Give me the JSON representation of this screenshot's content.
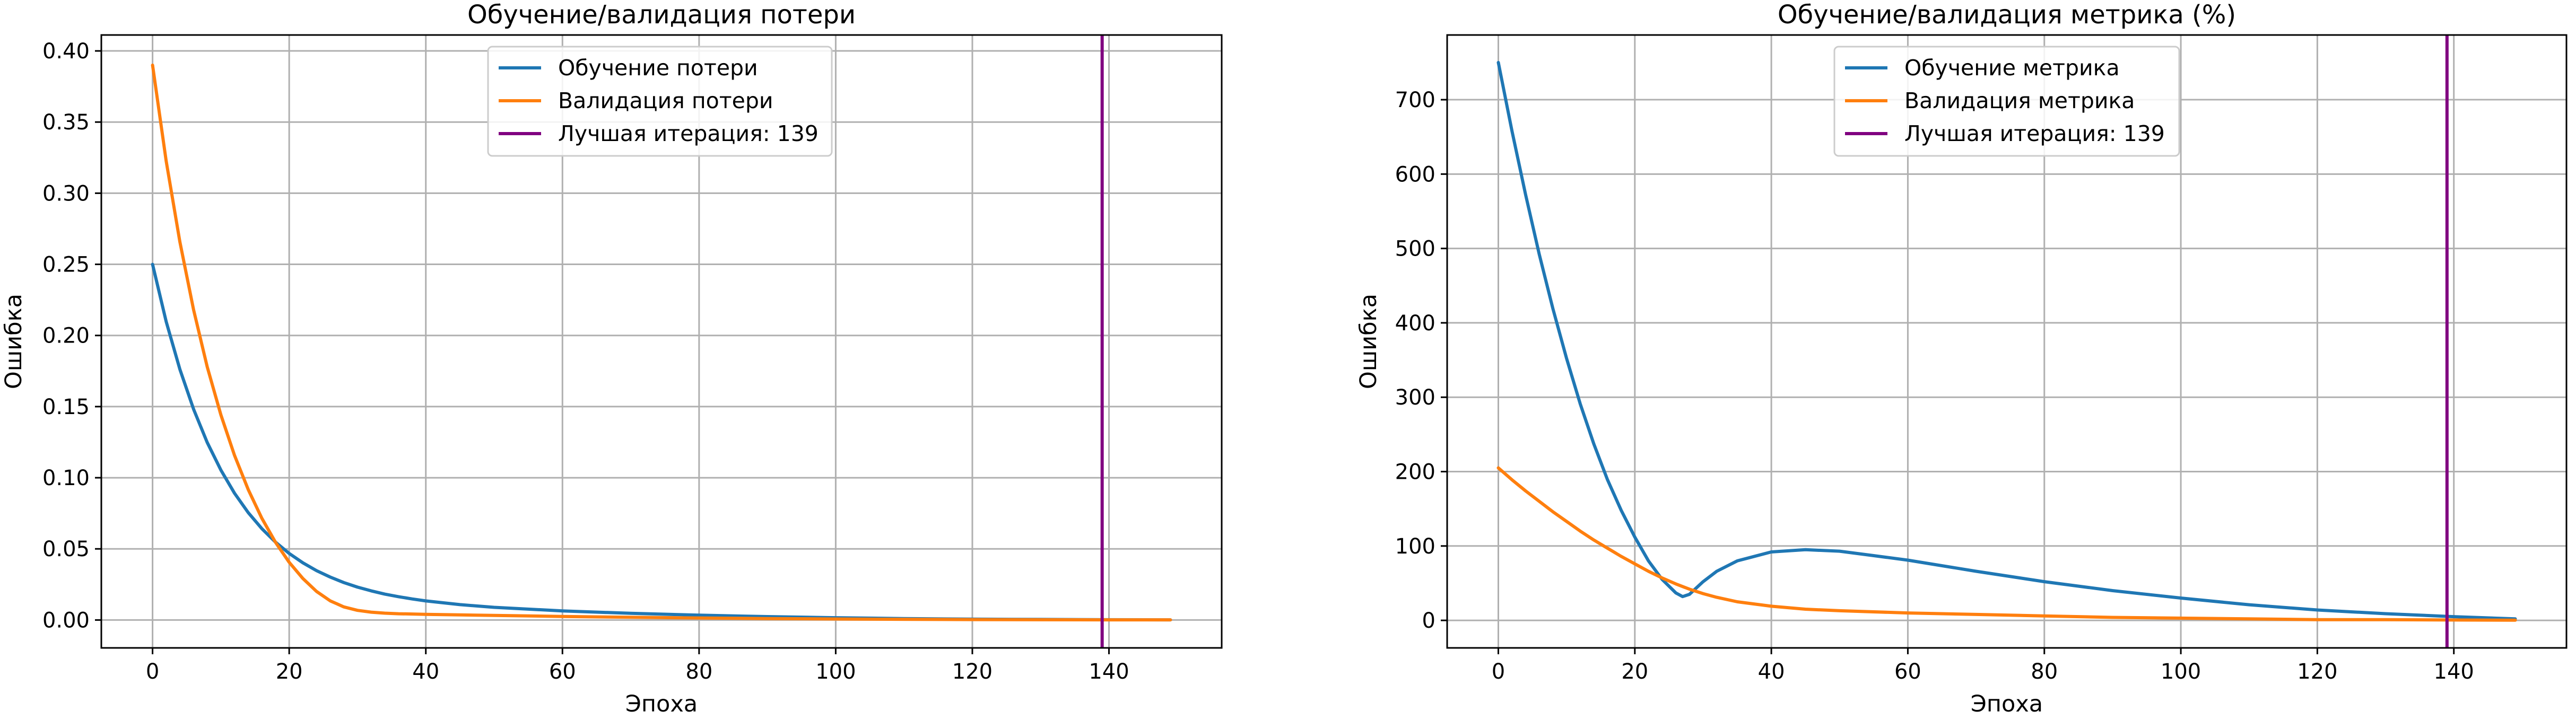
{
  "chart_data": [
    {
      "type": "line",
      "title": "Обучение/валидация потери",
      "xlabel": "Эпоха",
      "ylabel": "Ошибка",
      "xlim": [
        -7.5,
        156.5
      ],
      "ylim": [
        -0.0196,
        0.4112
      ],
      "xticks": [
        0,
        20,
        40,
        60,
        80,
        100,
        120,
        140
      ],
      "xtick_labels": [
        "0",
        "20",
        "40",
        "60",
        "80",
        "100",
        "120",
        "140"
      ],
      "yticks": [
        0,
        0.05,
        0.1,
        0.15,
        0.2,
        0.25,
        0.3,
        0.35,
        0.4
      ],
      "ytick_labels": [
        "0.00",
        "0.05",
        "0.10",
        "0.15",
        "0.20",
        "0.25",
        "0.30",
        "0.35",
        "0.40"
      ],
      "grid": true,
      "legend_position": "top-center",
      "series": [
        {
          "name": "Обучение потери",
          "color": "#1f77b4",
          "x": [
            0,
            2,
            4,
            6,
            8,
            10,
            12,
            14,
            16,
            18,
            20,
            22,
            24,
            26,
            28,
            30,
            32,
            34,
            36,
            38,
            40,
            45,
            50,
            60,
            70,
            80,
            90,
            100,
            110,
            120,
            130,
            140,
            149
          ],
          "y": [
            0.25,
            0.2097,
            0.1762,
            0.1482,
            0.1248,
            0.1054,
            0.0891,
            0.0755,
            0.0642,
            0.0547,
            0.0468,
            0.0402,
            0.0347,
            0.0302,
            0.0263,
            0.0231,
            0.0205,
            0.0182,
            0.0164,
            0.0148,
            0.0134,
            0.0108,
            0.0089,
            0.0064,
            0.0047,
            0.0034,
            0.0024,
            0.0016,
            0.001,
            0.0006,
            0.0004,
            0.0002,
            0.0001
          ]
        },
        {
          "name": "Валидация потери",
          "color": "#ff7f0e",
          "x": [
            0,
            2,
            4,
            6,
            8,
            10,
            12,
            14,
            16,
            18,
            20,
            22,
            24,
            26,
            28,
            30,
            32,
            34,
            36,
            38,
            40,
            45,
            50,
            60,
            70,
            80,
            90,
            100,
            110,
            120,
            130,
            140,
            149
          ],
          "y": [
            0.39,
            0.3225,
            0.2658,
            0.2181,
            0.178,
            0.1442,
            0.1157,
            0.0917,
            0.0715,
            0.0546,
            0.0406,
            0.0292,
            0.0201,
            0.0135,
            0.0092,
            0.0068,
            0.0055,
            0.0048,
            0.0044,
            0.0042,
            0.004,
            0.0036,
            0.0032,
            0.0025,
            0.0019,
            0.0014,
            0.001,
            0.0007,
            0.0005,
            0.0003,
            0.0002,
            0.0001,
            0.0001
          ]
        },
        {
          "name": "Лучшая итерация: 139",
          "color": "#800080",
          "type": "vline",
          "x": 139
        }
      ]
    },
    {
      "type": "line",
      "title": "Обучение/валидация метрика (%)",
      "xlabel": "Эпоха",
      "ylabel": "Ошибка",
      "xlim": [
        -7.5,
        156.5
      ],
      "ylim": [
        -37,
        787
      ],
      "xticks": [
        0,
        20,
        40,
        60,
        80,
        100,
        120,
        140
      ],
      "xtick_labels": [
        "0",
        "20",
        "40",
        "60",
        "80",
        "100",
        "120",
        "140"
      ],
      "yticks": [
        0,
        100,
        200,
        300,
        400,
        500,
        600,
        700
      ],
      "ytick_labels": [
        "0",
        "100",
        "200",
        "300",
        "400",
        "500",
        "600",
        "700"
      ],
      "grid": true,
      "legend_position": "top-center",
      "series": [
        {
          "name": "Обучение метрика",
          "color": "#1f77b4",
          "x": [
            0,
            2,
            4,
            6,
            8,
            10,
            12,
            14,
            16,
            18,
            20,
            22,
            24,
            26,
            27,
            28,
            30,
            32,
            35,
            40,
            45,
            50,
            55,
            60,
            70,
            80,
            90,
            100,
            110,
            120,
            130,
            140,
            149
          ],
          "y": [
            750,
            658,
            572,
            492,
            419,
            352,
            291,
            237,
            189,
            148,
            112,
            80,
            55,
            37,
            32,
            35,
            52,
            66,
            80,
            92,
            95,
            93,
            87,
            81,
            66,
            52,
            40,
            30,
            21,
            14,
            9,
            5,
            2
          ]
        },
        {
          "name": "Валидация метрика",
          "color": "#ff7f0e",
          "x": [
            0,
            2,
            4,
            6,
            8,
            10,
            12,
            14,
            16,
            18,
            20,
            22,
            24,
            26,
            28,
            30,
            32,
            35,
            40,
            45,
            50,
            60,
            70,
            80,
            90,
            100,
            110,
            120,
            130,
            140,
            149
          ],
          "y": [
            205,
            189,
            174,
            160,
            146,
            133,
            120,
            108,
            97,
            86,
            76,
            66,
            57,
            49,
            42,
            36,
            31,
            25,
            19,
            15,
            13,
            10,
            8,
            6,
            4,
            3,
            2,
            1,
            1,
            0.5,
            0.3
          ]
        },
        {
          "name": "Лучшая итерация: 139",
          "color": "#800080",
          "type": "vline",
          "x": 139
        }
      ]
    }
  ]
}
